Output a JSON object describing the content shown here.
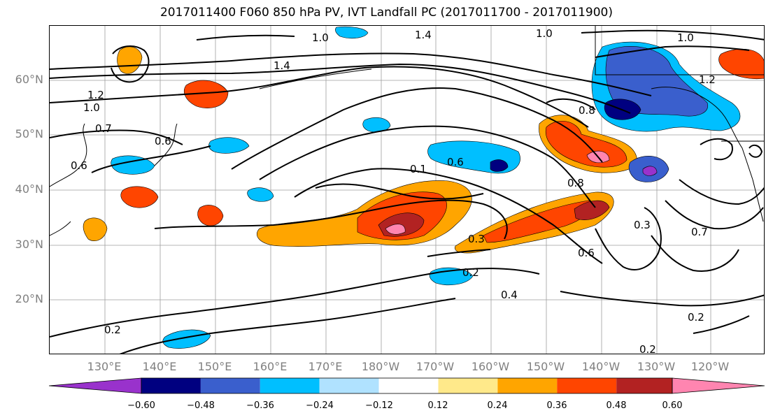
{
  "title": "2017011400 F060 850 hPa PV, IVT Landfall PC (2017011700 - 2017011900)",
  "lat_labels": [
    "60°N",
    "50°N",
    "40°N",
    "30°N",
    "20°N"
  ],
  "lon_labels": [
    "130°E",
    "140°E",
    "150°E",
    "160°E",
    "170°E",
    "180°W",
    "170°W",
    "160°W",
    "150°W",
    "140°W",
    "130°W",
    "120°W"
  ],
  "colorbar": {
    "colors": [
      "#9932CC",
      "#000080",
      "#3A5FCD",
      "#00BFFF",
      "#B0E2FF",
      "#FFFFFF",
      "#FFE98A",
      "#FFA500",
      "#FF4500",
      "#B22222",
      "#FF85B0"
    ],
    "ticks": [
      "−0.60",
      "−0.48",
      "−0.36",
      "−0.24",
      "−0.12",
      "0.12",
      "0.24",
      "0.36",
      "0.48",
      "0.60"
    ]
  },
  "contour_labels": [
    "1.0",
    "1.4",
    "1.0",
    "1.0",
    "1.2",
    "1.4",
    "1.0",
    "1.2",
    "0.8",
    "0.7",
    "0.6",
    "0.6",
    "0.1",
    "0.6",
    "0.8",
    "0.3",
    "0.2",
    "0.4",
    "0.6",
    "0.3",
    "0.2",
    "0.2",
    "0.2",
    "0.7"
  ]
}
